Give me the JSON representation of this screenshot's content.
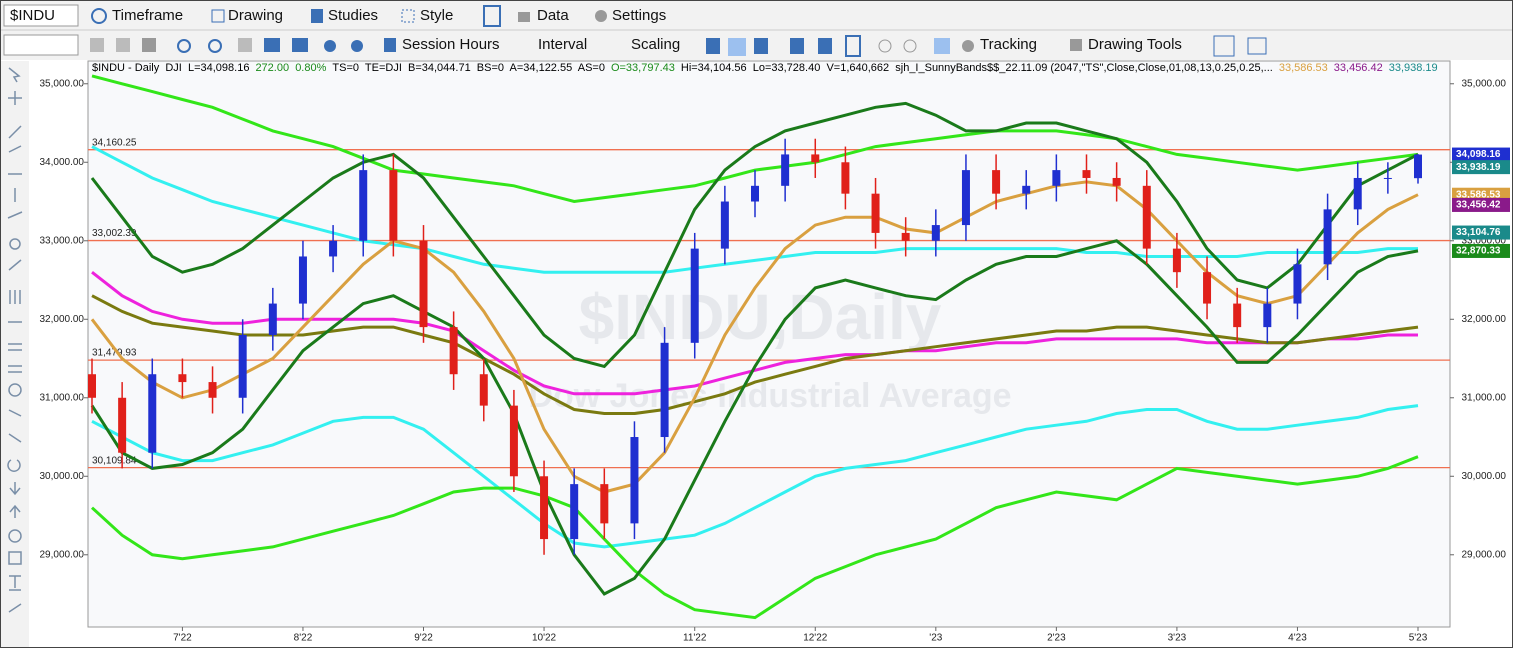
{
  "toolbar": {
    "row1": [
      "$INDU",
      "Timeframe",
      "Drawing",
      "Studies",
      "Style",
      "Data",
      "Settings"
    ],
    "row2": [
      "Session Hours",
      "Interval",
      "Scaling",
      "Tracking",
      "Drawing Tools"
    ]
  },
  "chart_data": {
    "type": "candlestick",
    "header": [
      {
        "text": "$INDU - Daily  DJI  L=34,098.16",
        "color": "#000000"
      },
      {
        "text": "272.00  0.80%",
        "color": "#1a8a1a"
      },
      {
        "text": "TS=0  TE=DJI  B=34,044.71  BS=0  A=34,122.55  AS=0",
        "color": "#000000"
      },
      {
        "text": "O=33,797.43",
        "color": "#1a8a1a"
      },
      {
        "text": "Hi=34,104.56  Lo=33,728.40  V=1,640,662  sjh_I_SunnyBands$$_22.11.09 (2047,\"TS\",Close,Close,01,08,13,0.25,0.25,...",
        "color": "#000000"
      },
      {
        "text": "33,586.53",
        "color": "#d9a040"
      },
      {
        "text": "33,456.42",
        "color": "#8a1a8a"
      },
      {
        "text": "33,938.19",
        "color": "#1a8a8a"
      }
    ],
    "watermark": [
      "$INDU,Daily",
      "Dow Jones Industrial Average"
    ],
    "categories": [
      null,
      null,
      null,
      "7'22",
      null,
      null,
      null,
      "8'22",
      null,
      null,
      null,
      "9'22",
      null,
      null,
      null,
      "10'22",
      null,
      null,
      null,
      null,
      "11'22",
      null,
      null,
      null,
      "12'22",
      null,
      null,
      null,
      "'23",
      null,
      null,
      null,
      "2'23",
      null,
      null,
      null,
      "3'23",
      null,
      null,
      null,
      "4'23",
      null,
      null,
      null,
      "5'23"
    ],
    "open": [
      31300,
      31000,
      30300,
      31300,
      31200,
      31000,
      31800,
      32200,
      32800,
      33000,
      33900,
      33000,
      31900,
      31300,
      30900,
      30000,
      29200,
      29900,
      29400,
      30500,
      31700,
      32900,
      33500,
      33700,
      34100,
      34000,
      33600,
      33100,
      33000,
      33200,
      33900,
      33600,
      33700,
      33900,
      33800,
      33700,
      32900,
      32600,
      32200,
      31900,
      32200,
      32700,
      33400,
      33800,
      33797.43
    ],
    "high": [
      31500,
      31200,
      31500,
      31500,
      31400,
      32000,
      32400,
      33000,
      33200,
      34100,
      34100,
      33200,
      32100,
      31500,
      31100,
      30200,
      30100,
      30100,
      30700,
      31900,
      33100,
      33700,
      33900,
      34300,
      34300,
      34200,
      33800,
      33300,
      33400,
      34100,
      34100,
      33900,
      34100,
      34100,
      34000,
      33900,
      33100,
      32800,
      32400,
      32400,
      32900,
      33600,
      34000,
      34000,
      34104.56
    ],
    "low": [
      30800,
      30100,
      30100,
      31000,
      30800,
      30800,
      31600,
      32000,
      32600,
      32800,
      32800,
      31700,
      31100,
      30700,
      29800,
      29000,
      29000,
      29200,
      29200,
      30300,
      31500,
      32700,
      33300,
      33500,
      33800,
      33400,
      32900,
      32800,
      32800,
      33000,
      33400,
      33400,
      33500,
      33600,
      33500,
      32700,
      32400,
      32000,
      31700,
      31700,
      32000,
      32500,
      33200,
      33600,
      33728.4
    ],
    "close": [
      31000,
      30300,
      31300,
      31200,
      31000,
      31800,
      32200,
      32800,
      33000,
      33900,
      33000,
      31900,
      31300,
      30900,
      30000,
      29200,
      29900,
      29400,
      30500,
      31700,
      32900,
      33500,
      33700,
      34100,
      34000,
      33600,
      33100,
      33000,
      33200,
      33900,
      33600,
      33700,
      33900,
      33800,
      33700,
      32900,
      32600,
      32200,
      31900,
      32200,
      32700,
      33400,
      33800,
      33800,
      34098.16
    ],
    "up_color": "#1f2fd0",
    "down_color": "#e0201a",
    "lines": [
      {
        "color": "#33e619",
        "values": [
          35100,
          35000,
          34900,
          34800,
          34700,
          34550,
          34400,
          34300,
          34200,
          34050,
          33900,
          33850,
          33800,
          33750,
          33700,
          33600,
          33500,
          33550,
          33600,
          33650,
          33700,
          33800,
          33900,
          33950,
          34000,
          34100,
          34200,
          34250,
          34300,
          34350,
          34400,
          34400,
          34400,
          34350,
          34300,
          34200,
          34100,
          34050,
          34000,
          33950,
          33900,
          33950,
          34000,
          34050,
          34100
        ]
      },
      {
        "color": "#33f0f0",
        "values": [
          34200,
          34000,
          33800,
          33650,
          33500,
          33400,
          33300,
          33200,
          33100,
          33000,
          32950,
          32900,
          32800,
          32700,
          32650,
          32600,
          32600,
          32600,
          32600,
          32600,
          32650,
          32700,
          32750,
          32800,
          32850,
          32850,
          32850,
          32900,
          32900,
          32900,
          32900,
          32900,
          32900,
          32850,
          32850,
          32800,
          32800,
          32800,
          32800,
          32850,
          32850,
          32850,
          32850,
          32900,
          32900
        ]
      },
      {
        "color": "#ee22dd",
        "values": [
          32600,
          32300,
          32100,
          32000,
          31950,
          31950,
          32000,
          32000,
          32000,
          32000,
          32000,
          31950,
          31850,
          31600,
          31350,
          31150,
          31050,
          31050,
          31050,
          31100,
          31150,
          31250,
          31350,
          31450,
          31500,
          31550,
          31550,
          31600,
          31600,
          31650,
          31700,
          31700,
          31750,
          31750,
          31750,
          31750,
          31750,
          31700,
          31700,
          31700,
          31700,
          31750,
          31750,
          31800,
          31800
        ]
      },
      {
        "color": "#7a7a10",
        "values": [
          32300,
          32100,
          31950,
          31900,
          31850,
          31800,
          31800,
          31800,
          31850,
          31900,
          31900,
          31800,
          31700,
          31500,
          31300,
          31050,
          30850,
          30800,
          30800,
          30850,
          30950,
          31050,
          31200,
          31300,
          31400,
          31500,
          31550,
          31600,
          31650,
          31700,
          31750,
          31800,
          31850,
          31850,
          31900,
          31900,
          31850,
          31800,
          31750,
          31700,
          31700,
          31750,
          31800,
          31850,
          31900
        ]
      },
      {
        "color": "#33f0f0",
        "values": [
          30700,
          30500,
          30300,
          30200,
          30200,
          30300,
          30400,
          30550,
          30700,
          30750,
          30750,
          30600,
          30300,
          30000,
          29700,
          29400,
          29150,
          29100,
          29150,
          29200,
          29250,
          29400,
          29600,
          29800,
          30000,
          30100,
          30150,
          30200,
          30300,
          30400,
          30500,
          30600,
          30650,
          30700,
          30800,
          30850,
          30850,
          30700,
          30600,
          30600,
          30650,
          30700,
          30750,
          30850,
          30900
        ]
      },
      {
        "color": "#33e619",
        "values": [
          29600,
          29250,
          29000,
          28950,
          29000,
          29050,
          29100,
          29200,
          29300,
          29400,
          29500,
          29650,
          29800,
          29850,
          29850,
          29750,
          29600,
          29200,
          28800,
          28500,
          28300,
          28250,
          28200,
          28450,
          28700,
          28850,
          29000,
          29100,
          29200,
          29400,
          29600,
          29700,
          29800,
          29750,
          29700,
          29900,
          30100,
          30050,
          30000,
          29950,
          29900,
          29950,
          30000,
          30100,
          30250
        ]
      },
      {
        "color": "#1a7a1a",
        "values": [
          33800,
          33300,
          32800,
          32600,
          32700,
          32900,
          33200,
          33500,
          33800,
          34000,
          34100,
          33800,
          33300,
          32800,
          32300,
          31800,
          31500,
          31400,
          31800,
          32600,
          33400,
          33900,
          34200,
          34400,
          34500,
          34600,
          34700,
          34750,
          34600,
          34400,
          34400,
          34500,
          34500,
          34400,
          34300,
          34000,
          33500,
          32900,
          32500,
          32400,
          32700,
          33200,
          33700,
          33900,
          34100
        ]
      },
      {
        "color": "#1a7a1a",
        "values": [
          30900,
          30300,
          30100,
          30150,
          30300,
          30600,
          31100,
          31600,
          31900,
          32200,
          32300,
          32100,
          31900,
          31500,
          30800,
          29800,
          29000,
          28500,
          28700,
          29200,
          29950,
          30700,
          31400,
          32000,
          32400,
          32500,
          32400,
          32300,
          32250,
          32500,
          32700,
          32800,
          32800,
          32900,
          33000,
          32700,
          32300,
          31900,
          31450,
          31450,
          31800,
          32200,
          32600,
          32800,
          32870.33
        ]
      },
      {
        "color": "#d9a040",
        "values": [
          32000,
          31500,
          31200,
          31000,
          31100,
          31300,
          31500,
          31900,
          32300,
          32700,
          33000,
          32900,
          32600,
          32100,
          31500,
          30600,
          30000,
          29800,
          29900,
          30300,
          31000,
          31800,
          32400,
          32900,
          33200,
          33300,
          33300,
          33150,
          33100,
          33300,
          33500,
          33600,
          33700,
          33750,
          33700,
          33400,
          33000,
          32600,
          32300,
          32200,
          32300,
          32700,
          33100,
          33400,
          33586.53
        ]
      }
    ],
    "levels": [
      {
        "value": 34160.25,
        "label": "34,160.25"
      },
      {
        "value": 33002.39,
        "label": "33,002.39"
      },
      {
        "value": 31479.93,
        "label": "31,479.93"
      },
      {
        "value": 30109.84,
        "label": "30,109.84"
      }
    ],
    "level_color": "#f07050",
    "last_values": [
      {
        "value": 34098.16,
        "label": "34,098.16",
        "color": "#1f2fd0"
      },
      {
        "value": 33938.19,
        "label": "33,938.19",
        "color": "#1a8a8a"
      },
      {
        "value": 33586.53,
        "label": "33,586.53",
        "color": "#d9a040"
      },
      {
        "value": 33456.42,
        "label": "33,456.42",
        "color": "#8a1a8a"
      },
      {
        "value": 33104.76,
        "label": "33,104.76",
        "color": "#1a8a8a"
      },
      {
        "value": 32870.33,
        "label": "32,870.33",
        "color": "#1a8a1a"
      }
    ],
    "ylim": [
      28080,
      35290
    ],
    "yticks": [
      {
        "value": 29000,
        "label": "29,000.00"
      },
      {
        "value": 30000,
        "label": "30,000.00"
      },
      {
        "value": 31000,
        "label": "31,000.00"
      },
      {
        "value": 32000,
        "label": "32,000.00"
      },
      {
        "value": 33000,
        "label": "33,000.00"
      },
      {
        "value": 34000,
        "label": "34,000.00"
      },
      {
        "value": 35000,
        "label": "35,000.00"
      }
    ]
  }
}
